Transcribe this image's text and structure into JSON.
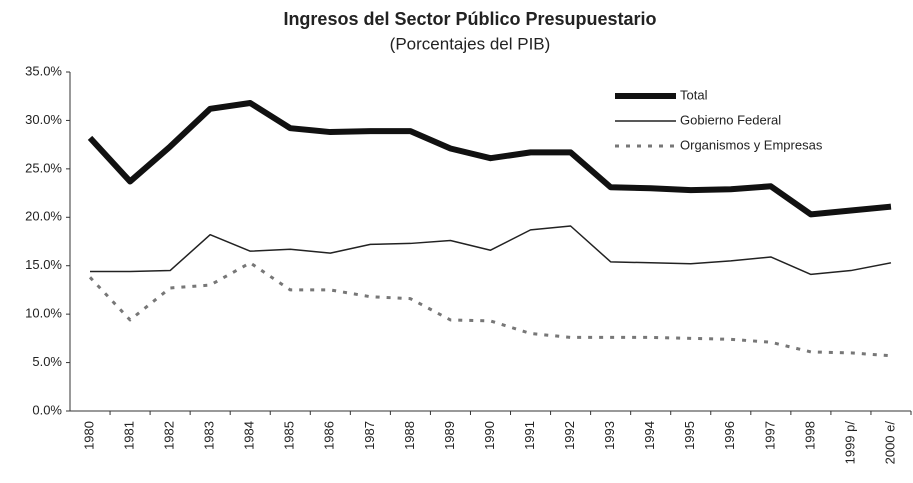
{
  "chart_data": {
    "type": "line",
    "title": "Ingresos del Sector Público Presupuestario",
    "subtitle": "(Porcentajes del PIB)",
    "categories": [
      "1980",
      "1981",
      "1982",
      "1983",
      "1984",
      "1985",
      "1986",
      "1987",
      "1988",
      "1989",
      "1990",
      "1991",
      "1992",
      "1993",
      "1994",
      "1995",
      "1996",
      "1997",
      "1998",
      "1999 p/",
      "2000 e/"
    ],
    "series": [
      {
        "name": "Total",
        "color": "#111111",
        "values": [
          28.2,
          23.7,
          27.3,
          31.2,
          31.8,
          29.2,
          28.8,
          28.9,
          28.9,
          27.1,
          26.1,
          26.7,
          26.7,
          23.1,
          23.0,
          22.8,
          22.9,
          23.2,
          20.3,
          20.7,
          21.1
        ]
      },
      {
        "name": "Gobierno Federal",
        "color": "#222222",
        "values": [
          14.4,
          14.4,
          14.5,
          18.2,
          16.5,
          16.7,
          16.3,
          17.2,
          17.3,
          17.6,
          16.6,
          18.7,
          19.1,
          15.4,
          15.3,
          15.2,
          15.5,
          15.9,
          14.1,
          14.5,
          15.3
        ]
      },
      {
        "name": "Organismos y Empresas",
        "color": "#777777",
        "values": [
          13.8,
          9.4,
          12.7,
          13.0,
          15.3,
          12.5,
          12.5,
          11.8,
          11.6,
          9.4,
          9.3,
          8.0,
          7.6,
          7.6,
          7.6,
          7.5,
          7.4,
          7.1,
          6.1,
          6.0,
          5.7
        ]
      }
    ],
    "ylim": [
      0,
      35
    ],
    "yticks": [
      {
        "value": 0,
        "label": "0.0%"
      },
      {
        "value": 5,
        "label": "5.0%"
      },
      {
        "value": 10,
        "label": "10.0%"
      },
      {
        "value": 15,
        "label": "15.0%"
      },
      {
        "value": 20,
        "label": "20.0%"
      },
      {
        "value": 25,
        "label": "25.0%"
      },
      {
        "value": 30,
        "label": "30.0%"
      },
      {
        "value": 35,
        "label": "35.0%"
      }
    ],
    "grid": false,
    "legend": "top-right"
  }
}
